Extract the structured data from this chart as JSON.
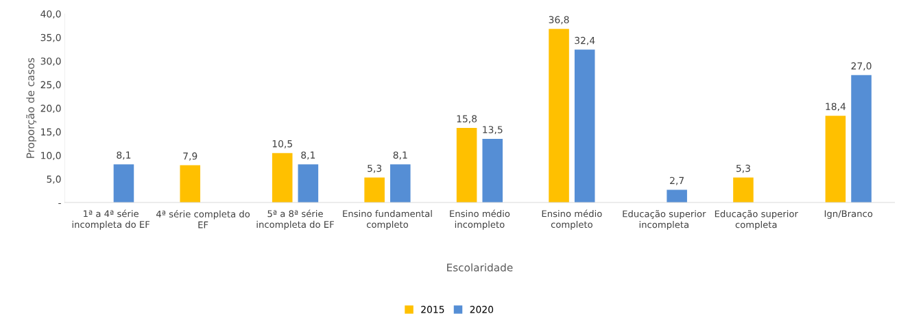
{
  "chart_data": {
    "type": "bar",
    "categories": [
      "1ª a 4ª série incompleta do EF",
      "4ª série completa do EF",
      "5ª a 8ª série incompleta do EF",
      "Ensino fundamental completo",
      "Ensino médio incompleto",
      "Ensino médio completo",
      "Educação superior incompleta",
      "Educação superior completa",
      "Ign/Branco"
    ],
    "series": [
      {
        "name": "2015",
        "color": "#ffc000",
        "values": [
          null,
          7.9,
          10.5,
          5.3,
          15.8,
          36.8,
          null,
          5.3,
          18.4
        ],
        "value_labels": [
          null,
          "7,9",
          "10,5",
          "5,3",
          "15,8",
          "36,8",
          null,
          "5,3",
          "18,4"
        ]
      },
      {
        "name": "2020",
        "color": "#558ed5",
        "values": [
          8.1,
          null,
          8.1,
          8.1,
          13.5,
          32.4,
          2.7,
          null,
          27.0
        ],
        "value_labels": [
          "8,1",
          null,
          "8,1",
          "8,1",
          "13,5",
          "32,4",
          "2,7",
          null,
          "27,0"
        ]
      }
    ],
    "xlabel": "Escolaridade",
    "ylabel": "Proporção de casos",
    "ylim": [
      0,
      40
    ],
    "yticks": [
      {
        "value": 0,
        "label": "-"
      },
      {
        "value": 5,
        "label": "5,0"
      },
      {
        "value": 10,
        "label": "10,0"
      },
      {
        "value": 15,
        "label": "15,0"
      },
      {
        "value": 20,
        "label": "20,0"
      },
      {
        "value": 25,
        "label": "25,0"
      },
      {
        "value": 30,
        "label": "30,0"
      },
      {
        "value": 35,
        "label": "35,0"
      },
      {
        "value": 40,
        "label": "40,0"
      }
    ],
    "grid": false,
    "legend": "bottom"
  }
}
